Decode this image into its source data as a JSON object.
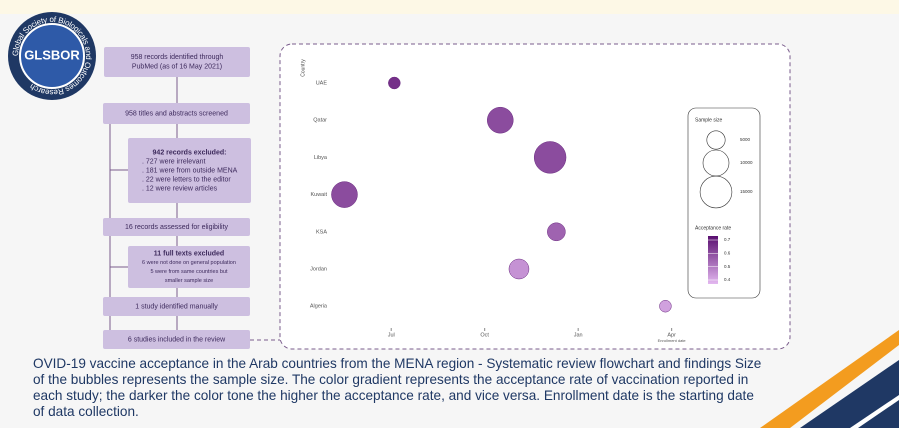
{
  "logo": {
    "name": "GLSBOR",
    "ring": "Global Society of Biologicals and Outcomes Research"
  },
  "flowchart": {
    "nodes": [
      {
        "lines": [
          "958 records identified through",
          "PubMed (as of 16 May 2021)"
        ]
      },
      {
        "lines": [
          "958 titles and abstracts screened"
        ]
      },
      {
        "lines": [
          "942 records excluded:",
          ". 727 were irrelevant",
          ". 181 were from outside MENA",
          ". 22 were letters to the editor",
          ". 12 were review articles"
        ]
      },
      {
        "lines": [
          "16 records assessed for eligibility"
        ]
      },
      {
        "lines": [
          "11 full texts excluded",
          "6 were not done on general population",
          "5 were from same countries but",
          "smaller sample size"
        ]
      },
      {
        "lines": [
          "1 study identified manually"
        ]
      },
      {
        "lines": [
          "6 studies included in the review"
        ]
      }
    ]
  },
  "chart_data": {
    "type": "scatter",
    "y_label": "Country",
    "x_label": "Enrollment date",
    "categories": [
      "UAE",
      "Qatar",
      "Libya",
      "Kuwait",
      "KSA",
      "Jordan",
      "Algeria"
    ],
    "x": [
      0.1,
      3.5,
      5.1,
      -1.5,
      5.3,
      4.1,
      8.8
    ],
    "sizes": [
      2100,
      10000,
      15000,
      10000,
      4800,
      5900,
      2100
    ],
    "acceptance": [
      0.66,
      0.6,
      0.6,
      0.6,
      0.55,
      0.45,
      0.42
    ],
    "xlim": [
      -1.9,
      9.3
    ],
    "xticks": [
      {
        "value": 0,
        "label": "Jul"
      },
      {
        "value": 3,
        "label": "Oct"
      },
      {
        "value": 6,
        "label": "Jan"
      },
      {
        "value": 9,
        "label": "Apr"
      }
    ],
    "size_legend": {
      "title": "Sample size",
      "values": [
        5000,
        10000,
        15000
      ]
    },
    "color_legend": {
      "title": "Acceptance rate",
      "ticks": [
        0.7,
        0.6,
        0.5,
        0.4
      ]
    },
    "colorlim": [
      0.37,
      0.73
    ],
    "color_low": "#e3b8f0",
    "color_high": "#5a0f70"
  },
  "caption": "OVID-19 vaccine acceptance in the Arab countries from the MENA region - Systematic review flowchart and findings Size of the bubbles represents the sample size. The color gradient represents the acceptance rate of vaccination reported in each study; the darker the color tone the higher the acceptance rate, and vice versa. Enrollment date is the starting date of data collection."
}
